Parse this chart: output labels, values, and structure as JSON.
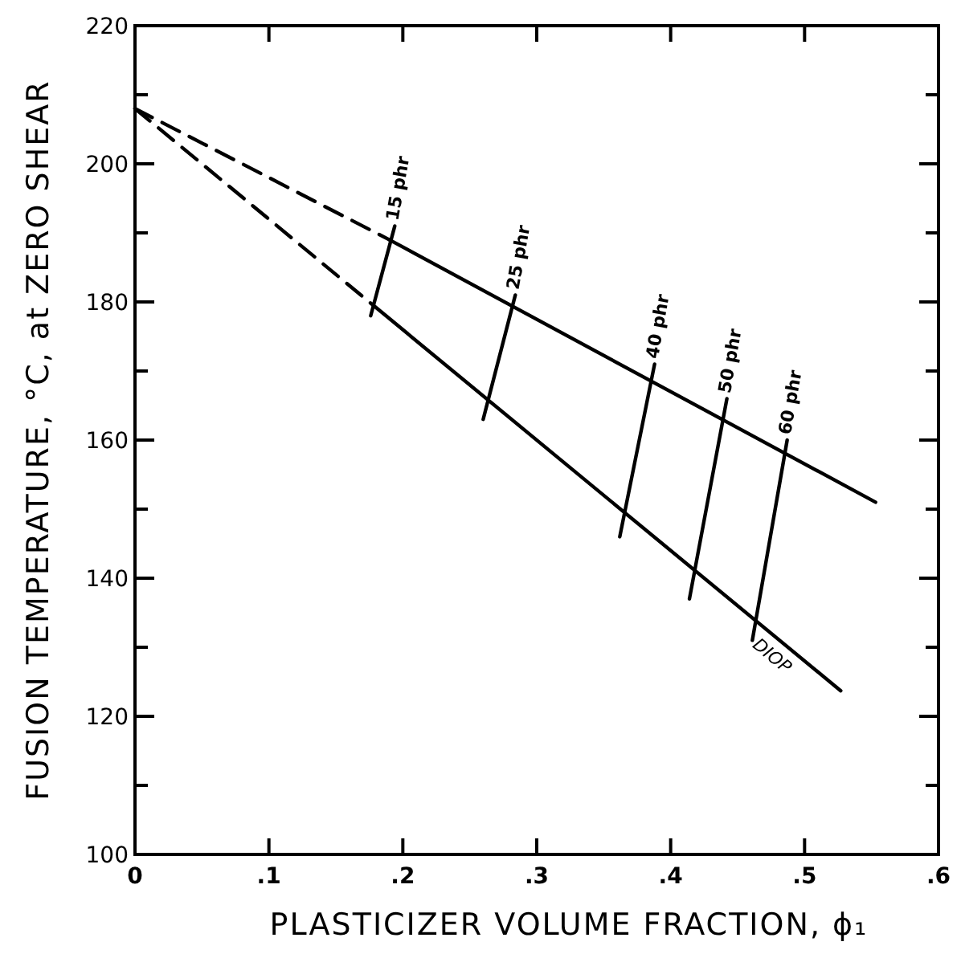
{
  "chart_data": {
    "type": "line",
    "xlabel": "PLASTICIZER VOLUME FRACTION, ϕ₁",
    "ylabel": "FUSION TEMPERATURE, °C, at ZERO SHEAR",
    "xlim": [
      0,
      0.6
    ],
    "xticks": [
      0,
      {
        "value": 0.1,
        "label": ".1"
      },
      {
        "value": 0.2,
        "label": ".2"
      },
      {
        "value": 0.3,
        "label": ".3"
      },
      {
        "value": 0.4,
        "label": ".4"
      },
      {
        "value": 0.5,
        "label": ".5"
      },
      {
        "value": 0.6,
        "label": ".6"
      }
    ],
    "ylim": [
      100,
      220
    ],
    "yticks": [
      100,
      {
        "value": 110,
        "label": null
      },
      120,
      {
        "value": 130,
        "label": null
      },
      140,
      {
        "value": 150,
        "label": null
      },
      160,
      {
        "value": 170,
        "label": null
      },
      180,
      {
        "value": 190,
        "label": null
      },
      200,
      {
        "value": 210,
        "label": null
      },
      220
    ],
    "grid": false,
    "marker": "none",
    "series": [
      {
        "color": "#000000",
        "line_style": "dashed",
        "x": [
          0,
          0.19
        ],
        "values": [
          208,
          189
        ]
      },
      {
        "color": "#000000",
        "line_style": "solid",
        "x": [
          0.19,
          0.553
        ],
        "values": [
          189,
          151
        ]
      },
      {
        "color": "#000000",
        "line_style": "dashed",
        "x": [
          0,
          0.178
        ],
        "values": [
          208,
          179.5
        ]
      },
      {
        "name": "DIOP",
        "color": "#000000",
        "line_style": "solid",
        "x": [
          0.178,
          0.527
        ],
        "values": [
          179.5,
          123.7
        ]
      },
      {
        "color": "#000000",
        "line_style": "solid",
        "x": [
          0.176,
          0.194
        ],
        "values": [
          178,
          191
        ]
      },
      {
        "color": "#000000",
        "line_style": "solid",
        "x": [
          0.26,
          0.284
        ],
        "values": [
          163,
          181
        ]
      },
      {
        "color": "#000000",
        "line_style": "solid",
        "x": [
          0.362,
          0.388
        ],
        "values": [
          146,
          171
        ]
      },
      {
        "color": "#000000",
        "line_style": "solid",
        "x": [
          0.414,
          0.442
        ],
        "values": [
          137,
          166
        ]
      },
      {
        "color": "#000000",
        "line_style": "solid",
        "x": [
          0.461,
          0.487
        ],
        "values": [
          131,
          160
        ]
      }
    ],
    "annotations": [
      {
        "text": "15 phr",
        "x": 0.194,
        "y": 191
      },
      {
        "text": "25 phr",
        "x": 0.284,
        "y": 181
      },
      {
        "text": "40 phr",
        "x": 0.388,
        "y": 171
      },
      {
        "text": "50 phr",
        "x": 0.442,
        "y": 166
      },
      {
        "text": "60 phr",
        "x": 0.487,
        "y": 160
      }
    ]
  }
}
